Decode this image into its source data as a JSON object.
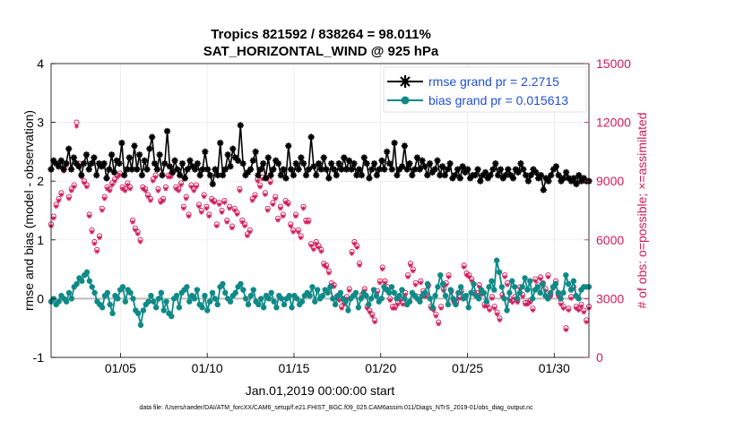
{
  "chart_data": {
    "type": "line",
    "title_line1": "Tropics 821592 / 838264 = 98.011%",
    "title_line2": "SAT_HORIZONTAL_WIND @ 925 hPa",
    "ylabel_left": "rmse and bias (model - observation)",
    "ylabel_right": "# of obs: o=possible; ×=assimilated",
    "xlabel": "Jan.01,2019 00:00:00 start",
    "footnote": "data file: /Users/raeder/DAI/ATM_forcXX/CAM6_setup/f.e21.FHIST_BGC.f09_025.CAM6assim.011/Diags_NTrS_2019-01/obs_diag_output.nc",
    "x_ticks": [
      {
        "label": "01/05",
        "day": 5
      },
      {
        "label": "01/10",
        "day": 10
      },
      {
        "label": "01/15",
        "day": 15
      },
      {
        "label": "01/20",
        "day": 20
      },
      {
        "label": "01/25",
        "day": 25
      },
      {
        "label": "01/30",
        "day": 30
      }
    ],
    "xlim": [
      1,
      32
    ],
    "ylim_left": [
      -1,
      4
    ],
    "yticks_left": [
      "-1",
      "0",
      "1",
      "2",
      "3",
      "4"
    ],
    "ylim_right": [
      0,
      15000
    ],
    "yticks_right": [
      "0",
      "3000",
      "6000",
      "9000",
      "12000",
      "15000"
    ],
    "colors": {
      "rmse": "#000000",
      "bias": "#0e8a87",
      "obs": "#d11a5a",
      "zero_line": "#bbbbbb",
      "legend_text": "#1f4fd8"
    },
    "series": [
      {
        "name": "rmse grand pr = 2.2715",
        "key": "rmse",
        "values": [
          2.2,
          2.35,
          2.3,
          2.25,
          2.35,
          2.2,
          2.3,
          2.55,
          2.2,
          2.4,
          2.3,
          2.25,
          2.1,
          2.3,
          2.45,
          2.2,
          2.3,
          2.4,
          2.1,
          2.3,
          2.25,
          2.3,
          2.05,
          2.2,
          2.45,
          2.15,
          2.35,
          2.3,
          2.65,
          2.1,
          2.2,
          2.4,
          2.2,
          2.6,
          2.2,
          2.45,
          2.1,
          2.35,
          2.2,
          2.55,
          2.75,
          2.3,
          2.2,
          2.45,
          2.1,
          2.3,
          2.85,
          2.25,
          2.15,
          2.35,
          2.2,
          2.1,
          2.3,
          2.05,
          2.2,
          2.35,
          2.25,
          2.2,
          2.3,
          2.1,
          2.2,
          2.5,
          2.2,
          2.1,
          1.95,
          2.2,
          2.1,
          2.65,
          2.1,
          2.2,
          2.45,
          2.25,
          2.55,
          2.4,
          2.35,
          2.95,
          2.3,
          2.1,
          2.15,
          2.2,
          2.35,
          2.5,
          2.1,
          2.2,
          2.3,
          2.05,
          2.4,
          2.1,
          2.2,
          2.35,
          2.3,
          2.1,
          2.2,
          2.05,
          2.6,
          2.2,
          2.1,
          2.3,
          2.2,
          2.4,
          2.3,
          2.1,
          2.2,
          2.75,
          2.25,
          2.1,
          2.3,
          2.2,
          2.4,
          2.2,
          2.05,
          2.3,
          2.2,
          2.1,
          2.3,
          2.2,
          2.4,
          2.2,
          2.35,
          2.2,
          2.3,
          2.1,
          2.2,
          2.1,
          2.4,
          2.3,
          2.05,
          2.2,
          2.3,
          2.1,
          2.2,
          2.35,
          2.2,
          2.5,
          2.3,
          2.2,
          2.65,
          2.1,
          2.2,
          2.25,
          2.6,
          2.2,
          2.3,
          2.1,
          2.2,
          2.4,
          2.2,
          2.35,
          2.25,
          2.1,
          2.3,
          2.15,
          2.2,
          2.35,
          2.1,
          2.25,
          2.1,
          2.2,
          2.3,
          2.05,
          2.1,
          2.2,
          2.05,
          2.25,
          2.15,
          2.2,
          2.05,
          2.1,
          2.1,
          2.2,
          2.0,
          2.1,
          2.15,
          2.05,
          2.1,
          2.2,
          2.3,
          2.1,
          2.2,
          2.05,
          2.1,
          2.2,
          2.1,
          2.05,
          2.2,
          2.15,
          2.3,
          2.2,
          2.1,
          2.0,
          2.1,
          2.2,
          2.15,
          2.05,
          2.1,
          1.85,
          2.05,
          2.0,
          2.1,
          2.2,
          2.25,
          2.1,
          2.0,
          2.05,
          2.15,
          2.05,
          2.0,
          2.05,
          1.95,
          2.1,
          2.0,
          2.05,
          2.0,
          2.0
        ]
      },
      {
        "name": "bias grand pr = 0.015613",
        "key": "bias",
        "values": [
          -0.05,
          0.0,
          -0.1,
          -0.05,
          0.05,
          0.0,
          -0.05,
          0.1,
          0.0,
          0.2,
          0.25,
          0.35,
          0.3,
          0.4,
          0.45,
          0.3,
          0.2,
          0.1,
          -0.05,
          -0.1,
          -0.15,
          0.05,
          0.1,
          -0.1,
          -0.25,
          0.05,
          0.0,
          0.15,
          0.2,
          -0.05,
          0.15,
          0.1,
          0.0,
          -0.2,
          -0.25,
          -0.45,
          -0.2,
          -0.1,
          -0.05,
          0.05,
          -0.05,
          -0.15,
          0.0,
          0.1,
          -0.2,
          -0.05,
          -0.25,
          -0.3,
          0.0,
          0.05,
          -0.15,
          0.1,
          0.15,
          0.2,
          -0.05,
          0.05,
          0.0,
          0.15,
          -0.1,
          -0.15,
          0.05,
          -0.2,
          -0.05,
          0.1,
          0.0,
          -0.1,
          0.2,
          0.25,
          0.1,
          0.0,
          -0.05,
          0.05,
          0.1,
          0.2,
          0.25,
          0.15,
          0.0,
          -0.1,
          0.05,
          0.15,
          -0.05,
          -0.1,
          0.0,
          -0.15,
          0.05,
          0.0,
          0.1,
          -0.05,
          -0.15,
          0.05,
          0.0,
          -0.1,
          0.0,
          0.05,
          -0.15,
          0.05,
          0.0,
          -0.1,
          -0.05,
          0.05,
          0.1,
          0.05,
          0.2,
          -0.05,
          0.15,
          0.0,
          0.05,
          0.15,
          0.1,
          0.2,
          0.0,
          -0.1,
          0.05,
          0.1,
          0.0,
          -0.05,
          -0.2,
          0.0,
          0.05,
          0.1,
          -0.15,
          0.0,
          0.1,
          0.05,
          -0.1,
          0.0,
          0.15,
          0.05,
          -0.05,
          0.0,
          0.2,
          0.15,
          0.1,
          0.2,
          0.1,
          0.0,
          0.05,
          0.15,
          0.0,
          -0.1,
          -0.05,
          0.1,
          0.05,
          0.0,
          -0.05,
          0.05,
          0.1,
          0.25,
          0.0,
          -0.15,
          0.05,
          0.2,
          0.4,
          0.25,
          0.05,
          -0.1,
          0.15,
          0.0,
          -0.1,
          0.1,
          0.2,
          0.0,
          0.05,
          -0.15,
          0.1,
          0.25,
          0.05,
          0.0,
          0.15,
          0.1,
          -0.05,
          0.2,
          0.3,
          0.15,
          0.65,
          0.45,
          0.2,
          0.0,
          -0.2,
          0.1,
          0.3,
          0.2,
          0.0,
          0.1,
          0.2,
          0.35,
          0.15,
          0.3,
          0.0,
          0.15,
          0.2,
          0.1,
          0.25,
          0.05,
          0.0,
          0.1,
          0.2,
          0.25,
          0.1,
          0.0,
          0.1,
          0.4,
          0.25,
          0.15,
          0.3,
          0.05,
          0.0,
          0.15,
          0.2,
          0.2,
          0.2
        ]
      },
      {
        "name": "obs possible",
        "key": "possible",
        "values": [
          6800,
          7200,
          7800,
          8100,
          8400,
          9600,
          9900,
          8200,
          8600,
          8800,
          12000,
          9900,
          9300,
          9000,
          8800,
          7300,
          6500,
          5900,
          5500,
          6200,
          7600,
          8200,
          8700,
          8600,
          8900,
          9100,
          9300,
          9400,
          8700,
          8600,
          8900,
          8700,
          7000,
          6600,
          6400,
          6000,
          8700,
          8600,
          8300,
          8100,
          9100,
          9300,
          8600,
          8000,
          8100,
          8700,
          9300,
          9300,
          9500,
          8700,
          8600,
          8900,
          7700,
          8200,
          7300,
          8800,
          8600,
          8800,
          7800,
          7500,
          8300,
          7700,
          7300,
          8100,
          8000,
          6800,
          7900,
          7500,
          8000,
          7000,
          7700,
          6700,
          7600,
          7400,
          8600,
          7000,
          6800,
          6300,
          6500,
          8100,
          8300,
          9100,
          8800,
          9200,
          8400,
          7600,
          9000,
          7900,
          8200,
          7100,
          7700,
          7300,
          8000,
          7900,
          6800,
          6500,
          7300,
          6500,
          6200,
          7700,
          7000,
          7000,
          5800,
          5600,
          5900,
          5700,
          5500,
          4800,
          4700,
          4400,
          3800,
          3700,
          3100,
          3000,
          2600,
          2800,
          3100,
          3500,
          5400,
          5900,
          5700,
          4800,
          3200,
          3500,
          2600,
          2400,
          2200,
          1900,
          3400,
          3900,
          4600,
          3900,
          3600,
          3000,
          2600,
          2600,
          2800,
          3000,
          2800,
          3300,
          4200,
          4800,
          4500,
          3800,
          3100,
          3900,
          3400,
          3200,
          3700,
          2600,
          2500,
          2200,
          1800,
          2600,
          3500,
          3800,
          4200,
          3400,
          2900,
          2800,
          3100,
          3400,
          4700,
          4300,
          4200,
          4000,
          3300,
          3300,
          3700,
          3300,
          2700,
          2700,
          2500,
          3100,
          2600,
          2300,
          2000,
          3200,
          4200,
          3800,
          3000,
          2900,
          3100,
          2900,
          3600,
          3200,
          2800,
          2800,
          2900,
          2500,
          4000,
          3700,
          4100,
          3800,
          3500,
          4200,
          3200,
          3600,
          3900,
          3200,
          2800,
          2600,
          1500,
          2500,
          3100,
          3600,
          2600,
          2500,
          2700,
          2400,
          1900,
          2600
        ]
      },
      {
        "name": "obs assimilated",
        "key": "assimilated",
        "values": [
          6700,
          7100,
          7700,
          8000,
          8300,
          9500,
          9800,
          8100,
          8500,
          8700,
          11800,
          9800,
          9200,
          8900,
          8700,
          7200,
          6400,
          5800,
          5400,
          6100,
          7500,
          8100,
          8600,
          8500,
          8800,
          9000,
          9200,
          9300,
          8600,
          8500,
          8800,
          8600,
          6900,
          6500,
          6300,
          5900,
          8600,
          8500,
          8200,
          8000,
          9000,
          9200,
          8500,
          7900,
          8000,
          8600,
          9200,
          9200,
          9400,
          8600,
          8500,
          8800,
          7600,
          8100,
          7200,
          8700,
          8500,
          8700,
          7700,
          7400,
          8200,
          7600,
          7200,
          8000,
          7900,
          6700,
          7800,
          7400,
          7900,
          6900,
          7600,
          6600,
          7500,
          7300,
          8500,
          6900,
          6700,
          6200,
          6400,
          8000,
          8200,
          9000,
          8700,
          9100,
          8300,
          7500,
          8900,
          7800,
          8100,
          7000,
          7600,
          7200,
          7900,
          7800,
          6700,
          6400,
          7200,
          6400,
          6100,
          7600,
          6900,
          6900,
          5700,
          5500,
          5800,
          5600,
          5400,
          4700,
          4600,
          4300,
          3700,
          3600,
          3000,
          2900,
          2500,
          2700,
          3000,
          3400,
          5300,
          5800,
          5600,
          4700,
          3100,
          3400,
          2500,
          2300,
          2100,
          1800,
          3300,
          3800,
          4500,
          3800,
          3500,
          2900,
          2500,
          2500,
          2700,
          2900,
          2700,
          3200,
          4100,
          4700,
          4400,
          3700,
          3000,
          3800,
          3300,
          3100,
          3600,
          2500,
          2400,
          2100,
          1700,
          2500,
          3400,
          3700,
          4100,
          3300,
          2800,
          2700,
          3000,
          3300,
          4600,
          4200,
          4100,
          3900,
          3200,
          3200,
          3600,
          3200,
          2600,
          2600,
          2400,
          3000,
          2500,
          2200,
          1900,
          3100,
          4100,
          3700,
          2900,
          2800,
          3000,
          2800,
          3500,
          3100,
          2700,
          2700,
          2800,
          2400,
          3900,
          3600,
          4000,
          3700,
          3400,
          4100,
          3100,
          3500,
          3800,
          3100,
          2700,
          2500,
          1400,
          2400,
          3000,
          3500,
          2500,
          2400,
          2600,
          2300,
          1800,
          2500
        ]
      }
    ]
  }
}
